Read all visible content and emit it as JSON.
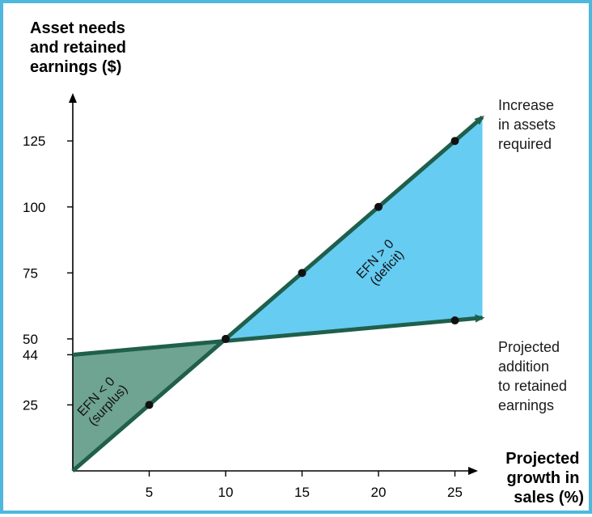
{
  "chart_data": {
    "type": "line",
    "ylabel": [
      "Asset needs",
      "and retained",
      "earnings ($)"
    ],
    "xlabel": [
      "Projected",
      "growth in",
      "sales (%)"
    ],
    "xlim": [
      0,
      28
    ],
    "ylim": [
      0,
      140
    ],
    "x_ticks": [
      5,
      10,
      15,
      20,
      25
    ],
    "y_ticks": [
      25,
      44,
      50,
      75,
      100,
      125
    ],
    "series": [
      {
        "name": "Increase in assets required",
        "label_lines": [
          "Increase",
          "in assets",
          "required"
        ],
        "color": "#1f5f4c",
        "points": [
          {
            "x": 0,
            "y": 0
          },
          {
            "x": 5,
            "y": 25
          },
          {
            "x": 10,
            "y": 50
          },
          {
            "x": 15,
            "y": 75
          },
          {
            "x": 20,
            "y": 100
          },
          {
            "x": 25,
            "y": 125
          }
        ],
        "line_end": {
          "x": 26.8,
          "y": 134
        }
      },
      {
        "name": "Projected addition to retained earnings",
        "label_lines": [
          "Projected",
          "addition",
          "to retained",
          "earnings"
        ],
        "color": "#1f5f4c",
        "points": [
          {
            "x": 0,
            "y": 44
          },
          {
            "x": 10,
            "y": 50
          },
          {
            "x": 25,
            "y": 57
          }
        ],
        "line_end": {
          "x": 26.8,
          "y": 58
        }
      }
    ],
    "regions": [
      {
        "name": "surplus",
        "label_lines": [
          "EFN < 0",
          "(surplus)"
        ],
        "color": "#6fa392"
      },
      {
        "name": "deficit",
        "label_lines": [
          "EFN > 0",
          "(deficit)"
        ],
        "color": "#66ccf2"
      }
    ],
    "colors": {
      "frame": "#4fb7de",
      "lines": "#1f5f4c",
      "dots": "#111111"
    }
  }
}
